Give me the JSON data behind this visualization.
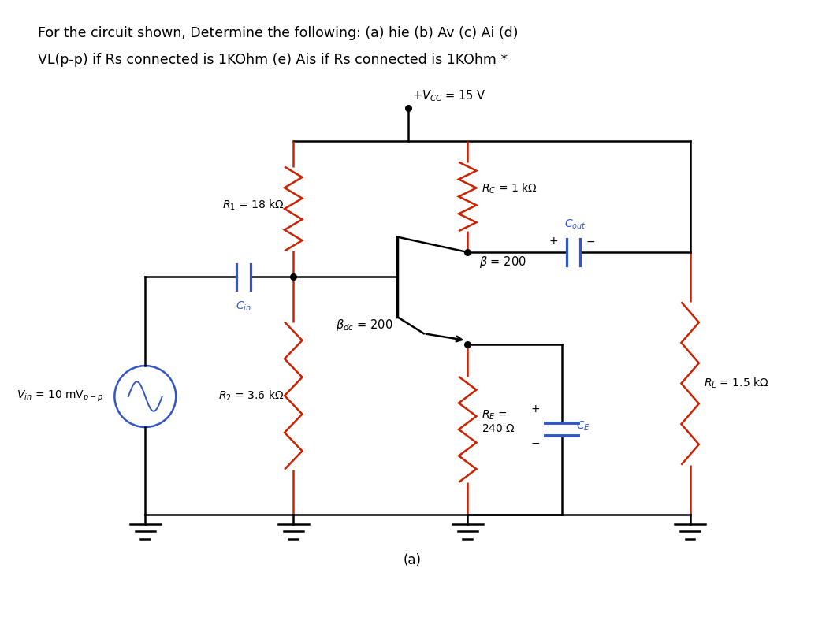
{
  "title_line1": "For the circuit shown, Determine the following: (a) hie (b) Av (c) Ai (d)",
  "title_line2": "VL(p-p) if Rs connected is 1KOhm (e) Ais if Rs connected is 1KOhm *",
  "bg_color": "#ffffff",
  "text_color": "#000000",
  "wire_color": "#000000",
  "res_color": "#cc2200",
  "cap_color": "#3355cc",
  "src_color": "#3355cc",
  "fig_label": "(a)",
  "vcc_label": "+V_{CC} = 15 V",
  "r1_label": "$R_1$ = 18 k$\\Omega$",
  "rc_label": "$R_C$ = 1 k$\\Omega$",
  "r2_label": "$R_2$ = 3.6 k$\\Omega$",
  "re_label": "$R_E$ =\n240 $\\Omega$",
  "rl_label": "$R_L$ = 1.5 k$\\Omega$",
  "beta_label": "$\\beta$ = 200",
  "bdc_label": "$\\beta_{dc}$ = 200",
  "cin_label": "$C_{in}$",
  "cout_label": "$C_{out}$",
  "ce_label": "$C_E$",
  "vin_label": "$V_{in}$ = 10 mV$_{p-p}$"
}
